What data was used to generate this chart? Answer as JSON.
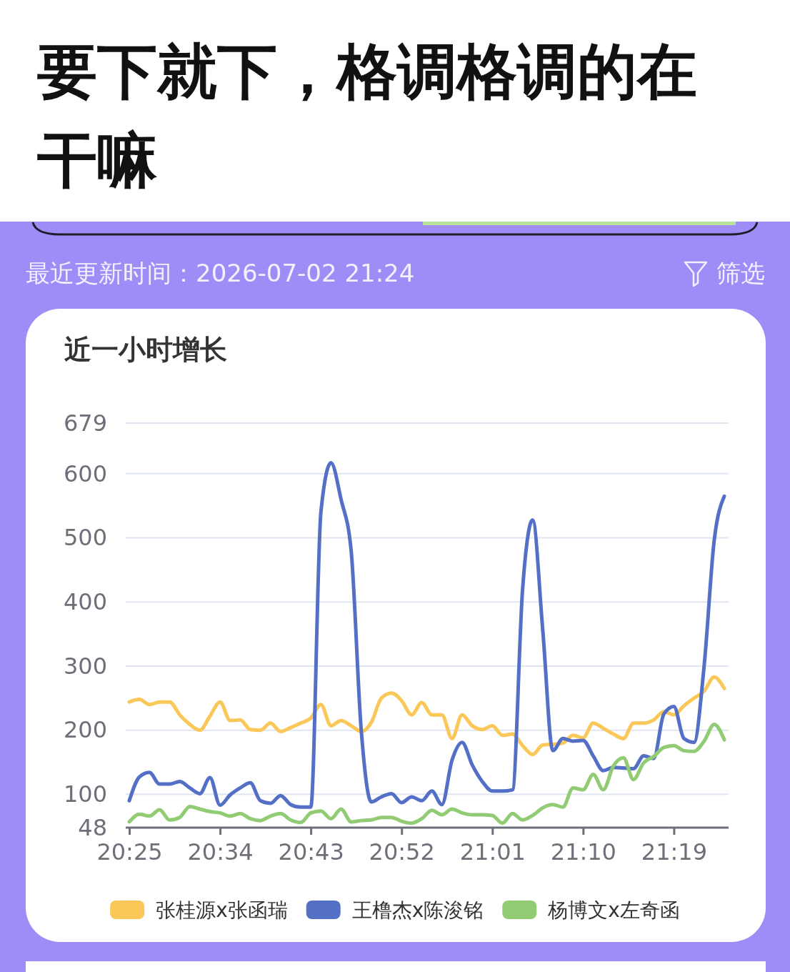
{
  "chart_data": {
    "type": "line",
    "title": "近一小时增长",
    "annotations": [
      "要下就下，格调格调的在干嘛",
      "最近更新时间：2026-07-02 21:24",
      "筛选"
    ],
    "categories": [
      "20:25",
      null,
      null,
      null,
      null,
      null,
      null,
      null,
      null,
      "20:34",
      null,
      null,
      null,
      null,
      null,
      null,
      null,
      null,
      "20:43",
      null,
      null,
      null,
      null,
      null,
      null,
      null,
      null,
      "20:52",
      null,
      null,
      null,
      null,
      null,
      null,
      null,
      null,
      "21:01",
      null,
      null,
      null,
      null,
      null,
      null,
      null,
      null,
      "21:10",
      null,
      null,
      null,
      null,
      null,
      null,
      null,
      null,
      "21:19",
      null,
      null,
      null,
      null,
      null
    ],
    "series": [
      {
        "name": "张桂源x张函瑞",
        "color": "#fac858",
        "values": [
          244,
          248,
          240,
          244,
          244,
          224,
          209,
          200,
          222,
          244,
          215,
          216,
          201,
          200,
          211,
          198,
          204,
          211,
          219,
          240,
          207,
          215,
          207,
          198,
          212,
          250,
          258,
          246,
          224,
          243,
          224,
          224,
          187,
          224,
          207,
          201,
          207,
          192,
          194,
          176,
          162,
          177,
          178,
          180,
          192,
          188,
          211,
          203,
          194,
          187,
          211,
          211,
          216,
          229,
          224,
          238,
          250,
          261,
          283,
          265
        ]
      },
      {
        "name": "王橹杰x陈浚铭",
        "color": "#5470c6",
        "values": [
          90,
          127,
          134,
          116,
          116,
          120,
          110,
          101,
          126,
          83,
          99,
          110,
          118,
          90,
          86,
          98,
          84,
          80,
          80,
          540,
          617,
          560,
          480,
          200,
          88,
          96,
          101,
          87,
          96,
          90,
          105,
          84,
          153,
          181,
          146,
          120,
          105,
          105,
          107,
          420,
          528,
          356,
          168,
          187,
          183,
          184,
          160,
          137,
          142,
          141,
          140,
          160,
          156,
          225,
          237,
          187,
          181,
          300,
          496,
          565
        ]
      },
      {
        "name": "杨博文x左奇函",
        "color": "#91cc75",
        "values": [
          57,
          69,
          66,
          76,
          60,
          64,
          81,
          77,
          73,
          71,
          66,
          70,
          62,
          59,
          66,
          70,
          60,
          56,
          71,
          74,
          62,
          77,
          57,
          59,
          60,
          64,
          64,
          58,
          55,
          62,
          75,
          68,
          77,
          71,
          68,
          68,
          67,
          55,
          70,
          60,
          67,
          79,
          84,
          80,
          110,
          107,
          131,
          107,
          144,
          157,
          123,
          149,
          159,
          173,
          176,
          168,
          167,
          183,
          209,
          185
        ]
      }
    ],
    "ylim": [
      48,
      679
    ],
    "yticks": [
      48,
      100,
      200,
      300,
      400,
      500,
      600,
      679
    ],
    "grid": "y",
    "legend": "bottom"
  }
}
